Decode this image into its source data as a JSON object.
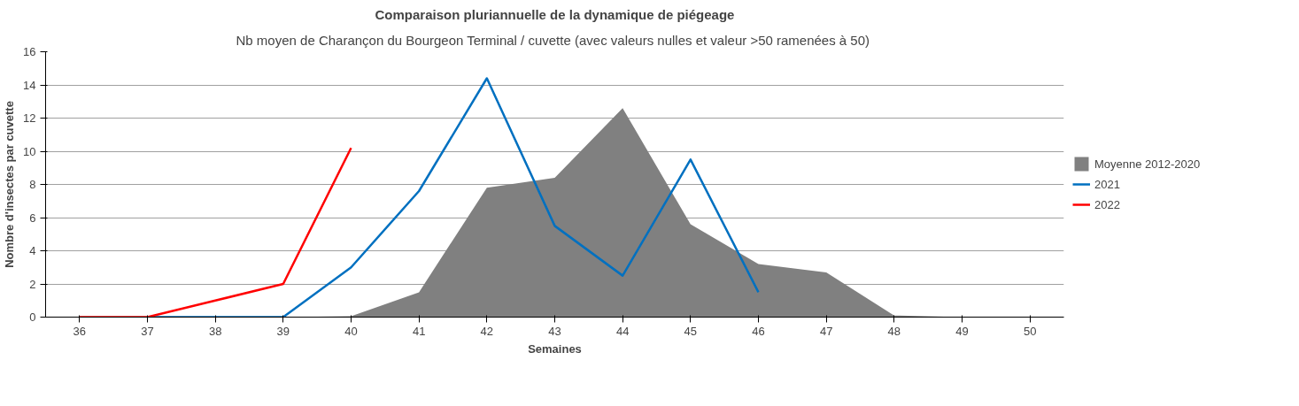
{
  "chart_data": {
    "type": "line",
    "title": "Comparaison pluriannuelle de la dynamique de piégeage",
    "subtitle": "Nb moyen de Charançon du Bourgeon Terminal  / cuvette (avec valeurs nulles et valeur >50 ramenées à 50)",
    "xlabel": "Semaines",
    "ylabel": "Nombre d'insectes par cuvette",
    "categories": [
      "36",
      "37",
      "38",
      "39",
      "40",
      "41",
      "42",
      "43",
      "44",
      "45",
      "46",
      "47",
      "48",
      "49",
      "50"
    ],
    "series": [
      {
        "name": "Moyenne 2012-2020",
        "type": "area",
        "color": "#808080",
        "values": [
          0,
          0,
          0,
          0,
          0.05,
          1.5,
          7.8,
          8.4,
          12.6,
          5.6,
          3.2,
          2.7,
          0.1,
          0,
          0
        ]
      },
      {
        "name": "2021",
        "color": "#0070c0",
        "values": [
          null,
          0,
          0,
          0,
          3,
          7.6,
          14.4,
          5.5,
          2.5,
          9.5,
          1.5,
          null,
          null,
          null,
          null
        ]
      },
      {
        "name": "2022",
        "color": "#ff0000",
        "values": [
          0,
          0,
          1,
          2,
          10.2,
          null,
          null,
          null,
          null,
          null,
          null,
          null,
          null,
          null,
          null
        ]
      }
    ],
    "ylim": [
      0,
      16
    ],
    "yticks": [
      0,
      2,
      4,
      6,
      8,
      10,
      12,
      14,
      16
    ],
    "grid": "y",
    "legend": "right",
    "marker": "none",
    "line_style": "solid"
  }
}
